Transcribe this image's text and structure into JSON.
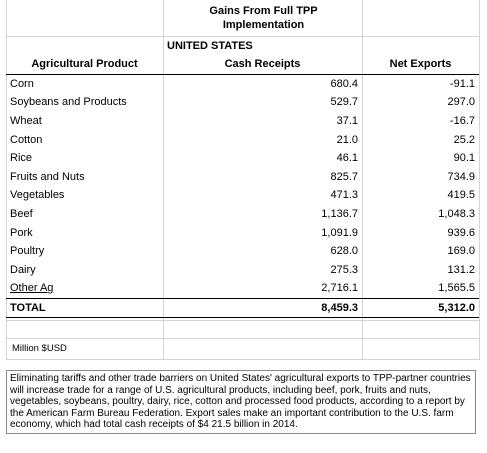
{
  "title_line1": "Gains From Full TPP",
  "title_line2": "Implementation",
  "region": "UNITED STATES",
  "columns": [
    "Agricultural Product",
    "Cash Receipts",
    "Net Exports"
  ],
  "rows": [
    {
      "product": "Corn",
      "cash": "680.4",
      "net": "-91.1"
    },
    {
      "product": "Soybeans and Products",
      "cash": "529.7",
      "net": "297.0"
    },
    {
      "product": "Wheat",
      "cash": "37.1",
      "net": "-16.7"
    },
    {
      "product": "Cotton",
      "cash": "21.0",
      "net": "25.2"
    },
    {
      "product": "Rice",
      "cash": "46.1",
      "net": "90.1"
    },
    {
      "product": "Fruits and Nuts",
      "cash": "825.7",
      "net": "734.9"
    },
    {
      "product": "Vegetables",
      "cash": "471.3",
      "net": "419.5"
    },
    {
      "product": "Beef",
      "cash": "1,136.7",
      "net": "1,048.3"
    },
    {
      "product": "Pork",
      "cash": "1,091.9",
      "net": "939.6"
    },
    {
      "product": "Poultry",
      "cash": "628.0",
      "net": "169.0"
    },
    {
      "product": "Dairy",
      "cash": "275.3",
      "net": "131.2"
    },
    {
      "product": "Other Ag",
      "cash": "2,716.1",
      "net": "1,565.5"
    }
  ],
  "total": {
    "label": "TOTAL",
    "cash": "8,459.3",
    "net": "5,312.0"
  },
  "units": "Million $USD",
  "note": "Eliminating tariffs and other trade barriers on United States' agricultural exports to TPP-partner countries will increase trade for a range of U.S. agricultural products, including beef, pork, fruits and nuts, vegetables, soybeans, poultry, dairy, rice, cotton and processed food products, according to a report by the American Farm Bureau Federation. Export sales make an important contribution to the U.S. farm economy, which had total cash receipts of $4 21.5 billion in 2014."
}
